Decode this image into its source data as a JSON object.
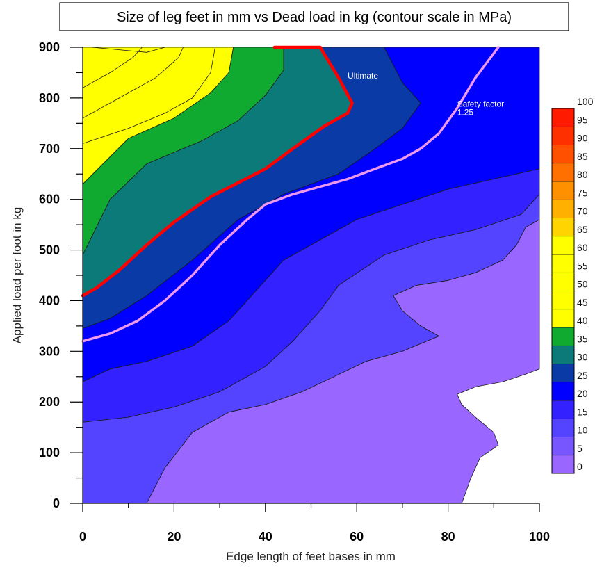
{
  "chart_data": {
    "type": "contour",
    "title": "Size of leg feet in mm vs Dead load in kg (contour scale in MPa)",
    "xlabel": "Edge length of feet bases in mm",
    "ylabel": "Applied load per foot in kg",
    "xlim": [
      0,
      100
    ],
    "ylim": [
      0,
      900
    ],
    "xticks": [
      0,
      20,
      40,
      60,
      80,
      100
    ],
    "yticks": [
      0,
      100,
      200,
      300,
      400,
      500,
      600,
      700,
      800,
      900
    ],
    "colorbar": {
      "levels": [
        0,
        5,
        10,
        15,
        20,
        25,
        30,
        35,
        40,
        45,
        50,
        55,
        60,
        65,
        70,
        75,
        80,
        85,
        90,
        95,
        100
      ],
      "labels": [
        "0",
        "5",
        "10",
        "15",
        "20",
        "25",
        "30",
        "35",
        "40",
        "45",
        "50",
        "55",
        "60",
        "65",
        "70",
        "75",
        "80",
        "85",
        "90",
        "95",
        "100"
      ],
      "colors": [
        "#9966ff",
        "#7755ff",
        "#5544ff",
        "#3322ff",
        "#0000ff",
        "#0a3aa6",
        "#0d7a7a",
        "#10aa30",
        "#ffff00",
        "#ffff00",
        "#ffff00",
        "#ffff00",
        "#ffff00",
        "#ffd400",
        "#ffb000",
        "#ff9000",
        "#ff7000",
        "#ff5000",
        "#ff3000",
        "#ff1a00"
      ]
    },
    "series": [
      {
        "name": "Ultimate",
        "color": "#ff0000",
        "x": [
          0,
          3,
          8,
          14,
          20,
          28,
          40,
          46,
          53,
          58,
          59,
          56,
          52,
          42
        ],
        "y": [
          410,
          425,
          460,
          510,
          555,
          605,
          660,
          700,
          745,
          770,
          790,
          840,
          900,
          900
        ]
      },
      {
        "name": "Safety factor 1.25",
        "color": "#ee99ee",
        "x": [
          0,
          6,
          12,
          18,
          24,
          30,
          36,
          40,
          46,
          52,
          58,
          64,
          70,
          74,
          78,
          82,
          86,
          91
        ],
        "y": [
          320,
          335,
          360,
          400,
          450,
          510,
          560,
          590,
          610,
          625,
          640,
          660,
          680,
          700,
          730,
          780,
          840,
          900
        ]
      }
    ],
    "bands": [
      {
        "level": "35-40",
        "color": "#ffff00",
        "points": [
          [
            0,
            900
          ],
          [
            33,
            900
          ],
          [
            32,
            850
          ],
          [
            28,
            810
          ],
          [
            20,
            760
          ],
          [
            10,
            720
          ],
          [
            0,
            630
          ]
        ]
      },
      {
        "level": "30-35",
        "color": "#10aa30",
        "points": [
          [
            0,
            630
          ],
          [
            10,
            720
          ],
          [
            20,
            760
          ],
          [
            28,
            810
          ],
          [
            32,
            850
          ],
          [
            33,
            900
          ],
          [
            44,
            900
          ],
          [
            44,
            855
          ],
          [
            40,
            805
          ],
          [
            34,
            755
          ],
          [
            26,
            715
          ],
          [
            14,
            670
          ],
          [
            6,
            600
          ],
          [
            0,
            490
          ]
        ]
      },
      {
        "level": "25-30",
        "color": "#0d7a7a",
        "points": [
          [
            0,
            490
          ],
          [
            6,
            600
          ],
          [
            14,
            670
          ],
          [
            26,
            715
          ],
          [
            34,
            755
          ],
          [
            40,
            805
          ],
          [
            44,
            855
          ],
          [
            44,
            900
          ],
          [
            52,
            900
          ],
          [
            56,
            840
          ],
          [
            59,
            790
          ],
          [
            58,
            770
          ],
          [
            53,
            745
          ],
          [
            46,
            700
          ],
          [
            40,
            660
          ],
          [
            28,
            605
          ],
          [
            20,
            555
          ],
          [
            14,
            510
          ],
          [
            8,
            460
          ],
          [
            3,
            425
          ],
          [
            0,
            410
          ]
        ]
      },
      {
        "level": "20-25",
        "color": "#0a3aa6",
        "points": [
          [
            0,
            410
          ],
          [
            3,
            425
          ],
          [
            8,
            460
          ],
          [
            14,
            510
          ],
          [
            20,
            555
          ],
          [
            28,
            605
          ],
          [
            40,
            660
          ],
          [
            46,
            700
          ],
          [
            53,
            745
          ],
          [
            58,
            770
          ],
          [
            59,
            790
          ],
          [
            56,
            840
          ],
          [
            52,
            900
          ],
          [
            66,
            900
          ],
          [
            70,
            830
          ],
          [
            74,
            790
          ],
          [
            70,
            740
          ],
          [
            64,
            700
          ],
          [
            56,
            650
          ],
          [
            44,
            610
          ],
          [
            34,
            560
          ],
          [
            24,
            480
          ],
          [
            14,
            410
          ],
          [
            6,
            365
          ],
          [
            0,
            345
          ]
        ]
      },
      {
        "level": "15-20",
        "color": "#0000ff",
        "points": [
          [
            0,
            345
          ],
          [
            6,
            365
          ],
          [
            14,
            410
          ],
          [
            24,
            480
          ],
          [
            34,
            560
          ],
          [
            44,
            610
          ],
          [
            56,
            650
          ],
          [
            64,
            700
          ],
          [
            70,
            740
          ],
          [
            74,
            790
          ],
          [
            70,
            830
          ],
          [
            66,
            900
          ],
          [
            100,
            900
          ],
          [
            100,
            660
          ],
          [
            90,
            640
          ],
          [
            80,
            620
          ],
          [
            70,
            590
          ],
          [
            60,
            560
          ],
          [
            52,
            520
          ],
          [
            44,
            480
          ],
          [
            38,
            420
          ],
          [
            32,
            360
          ],
          [
            24,
            310
          ],
          [
            14,
            280
          ],
          [
            6,
            265
          ],
          [
            0,
            240
          ]
        ]
      },
      {
        "level": "10-15",
        "color": "#3322ff",
        "points": [
          [
            0,
            240
          ],
          [
            6,
            265
          ],
          [
            14,
            280
          ],
          [
            24,
            310
          ],
          [
            32,
            360
          ],
          [
            38,
            420
          ],
          [
            44,
            480
          ],
          [
            52,
            520
          ],
          [
            60,
            560
          ],
          [
            70,
            590
          ],
          [
            80,
            620
          ],
          [
            90,
            640
          ],
          [
            100,
            660
          ],
          [
            100,
            610
          ],
          [
            96,
            570
          ],
          [
            86,
            540
          ],
          [
            76,
            520
          ],
          [
            66,
            490
          ],
          [
            56,
            430
          ],
          [
            52,
            380
          ],
          [
            46,
            320
          ],
          [
            40,
            270
          ],
          [
            30,
            220
          ],
          [
            20,
            190
          ],
          [
            10,
            170
          ],
          [
            0,
            160
          ]
        ]
      },
      {
        "level": "5-10",
        "color": "#5544ff",
        "points": [
          [
            0,
            160
          ],
          [
            10,
            170
          ],
          [
            20,
            190
          ],
          [
            30,
            220
          ],
          [
            40,
            270
          ],
          [
            46,
            320
          ],
          [
            52,
            380
          ],
          [
            56,
            430
          ],
          [
            66,
            490
          ],
          [
            76,
            520
          ],
          [
            86,
            540
          ],
          [
            96,
            570
          ],
          [
            100,
            610
          ],
          [
            100,
            560
          ],
          [
            97,
            545
          ],
          [
            95,
            510
          ],
          [
            92,
            480
          ],
          [
            86,
            455
          ],
          [
            80,
            440
          ],
          [
            73,
            430
          ],
          [
            68,
            410
          ],
          [
            70,
            380
          ],
          [
            74,
            350
          ],
          [
            78,
            330
          ],
          [
            70,
            300
          ],
          [
            62,
            280
          ],
          [
            55,
            250
          ],
          [
            48,
            220
          ],
          [
            40,
            195
          ],
          [
            32,
            180
          ],
          [
            24,
            140
          ],
          [
            18,
            70
          ],
          [
            14,
            0
          ],
          [
            0,
            0
          ]
        ]
      },
      {
        "level": "0-5",
        "color": "#9966ff",
        "points": [
          [
            14,
            0
          ],
          [
            18,
            70
          ],
          [
            24,
            140
          ],
          [
            32,
            180
          ],
          [
            40,
            195
          ],
          [
            48,
            220
          ],
          [
            55,
            250
          ],
          [
            62,
            280
          ],
          [
            70,
            300
          ],
          [
            78,
            330
          ],
          [
            74,
            350
          ],
          [
            70,
            380
          ],
          [
            68,
            410
          ],
          [
            73,
            430
          ],
          [
            80,
            440
          ],
          [
            86,
            455
          ],
          [
            92,
            480
          ],
          [
            95,
            510
          ],
          [
            97,
            545
          ],
          [
            100,
            560
          ],
          [
            100,
            265
          ],
          [
            97,
            255
          ],
          [
            92,
            240
          ],
          [
            86,
            230
          ],
          [
            82,
            215
          ],
          [
            83,
            195
          ],
          [
            86,
            170
          ],
          [
            90,
            140
          ],
          [
            91,
            115
          ],
          [
            87,
            90
          ],
          [
            85,
            50
          ],
          [
            83,
            0
          ]
        ]
      }
    ],
    "contour_lines": [
      [
        [
          0,
          820
        ],
        [
          6,
          850
        ],
        [
          11,
          880
        ],
        [
          13,
          900
        ]
      ],
      [
        [
          0,
          760
        ],
        [
          8,
          800
        ],
        [
          16,
          840
        ],
        [
          21,
          880
        ],
        [
          22,
          900
        ]
      ],
      [
        [
          2,
          900
        ],
        [
          8,
          895
        ],
        [
          14,
          890
        ],
        [
          18,
          900
        ]
      ],
      [
        [
          0,
          710
        ],
        [
          10,
          740
        ],
        [
          18,
          770
        ],
        [
          24,
          800
        ],
        [
          28,
          850
        ],
        [
          29,
          900
        ]
      ]
    ],
    "annotations": [
      {
        "text": "Ultimate",
        "x": 58,
        "y": 838
      },
      {
        "text": "Safety factor",
        "x": 82,
        "y": 783
      },
      {
        "text": "1.25",
        "x": 82,
        "y": 766
      }
    ]
  }
}
